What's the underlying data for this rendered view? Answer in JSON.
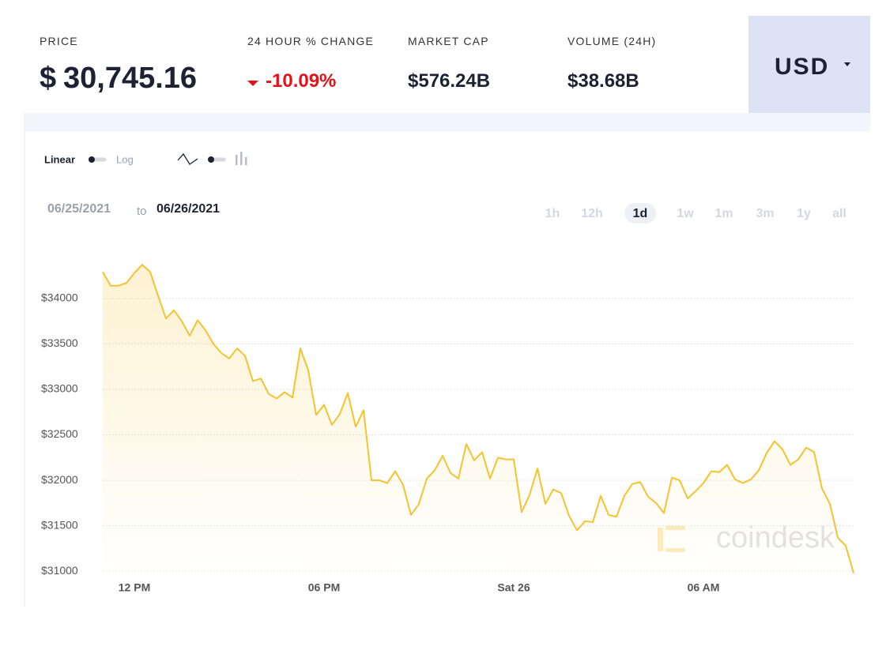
{
  "header": {
    "price_label": "PRICE",
    "currency_symbol": "$",
    "price": "30,745.16",
    "change_label": "24 HOUR % CHANGE",
    "change": "-10.09%",
    "market_cap_label": "MARKET CAP",
    "market_cap": "$576.24B",
    "volume_label": "VOLUME (24H)",
    "volume": "$38.68B",
    "currency": "USD"
  },
  "controls": {
    "linear": "Linear",
    "log": "Log",
    "from": "06/25/2021",
    "to_word": "to",
    "to": "06/26/2021",
    "ranges": [
      "1h",
      "12h",
      "1d",
      "1w",
      "1m",
      "3m",
      "1y",
      "all"
    ],
    "selected_range": "1d"
  },
  "chart_data": {
    "type": "area",
    "color": "#f5c330",
    "watermark": "coindesk",
    "grid": true,
    "categories": [
      null,
      null,
      null,
      null,
      "12 PM",
      null,
      null,
      null,
      null,
      null,
      null,
      null,
      null,
      null,
      null,
      null,
      null,
      null,
      null,
      null,
      null,
      null,
      null,
      null,
      null,
      null,
      null,
      null,
      "06 PM",
      null,
      null,
      null,
      null,
      null,
      null,
      null,
      null,
      null,
      null,
      null,
      null,
      null,
      null,
      null,
      null,
      null,
      null,
      null,
      null,
      null,
      null,
      null,
      "Sat 26",
      null,
      null,
      null,
      null,
      null,
      null,
      null,
      null,
      null,
      null,
      null,
      null,
      null,
      null,
      null,
      null,
      null,
      null,
      null,
      null,
      null,
      null,
      null,
      "06 AM",
      null,
      null,
      null,
      null,
      null,
      null,
      null,
      null,
      null,
      null,
      null,
      null,
      null,
      null,
      null,
      null,
      null,
      null,
      null
    ],
    "values": [
      34290,
      34140,
      34140,
      34170,
      34280,
      34370,
      34290,
      34030,
      33780,
      33870,
      33750,
      33590,
      33760,
      33650,
      33500,
      33400,
      33340,
      33450,
      33370,
      33090,
      33120,
      32950,
      32900,
      32970,
      32910,
      33450,
      33210,
      32720,
      32830,
      32610,
      32730,
      32960,
      32590,
      32770,
      32000,
      32000,
      31970,
      32100,
      31950,
      31620,
      31740,
      32020,
      32110,
      32270,
      32080,
      32020,
      32400,
      32220,
      32310,
      32020,
      32250,
      32230,
      32230,
      31650,
      31840,
      32130,
      31740,
      31900,
      31860,
      31610,
      31450,
      31550,
      31540,
      31830,
      31620,
      31600,
      31830,
      31960,
      31980,
      31820,
      31750,
      31640,
      32030,
      32000,
      31800,
      31880,
      31970,
      32100,
      32090,
      32170,
      32010,
      31970,
      32010,
      32110,
      32300,
      32430,
      32340,
      32170,
      32230,
      32360,
      32310,
      31910,
      31740,
      31370,
      31280,
      30980
    ],
    "ylim": [
      30950,
      34450
    ],
    "yticks": [
      {
        "value": 31000,
        "label": "$31000"
      },
      {
        "value": 31500,
        "label": "$31500"
      },
      {
        "value": 32000,
        "label": "$32000"
      },
      {
        "value": 32500,
        "label": "$32500"
      },
      {
        "value": 33000,
        "label": "$33000"
      },
      {
        "value": 33500,
        "label": "$33500"
      },
      {
        "value": 34000,
        "label": "$34000"
      }
    ]
  }
}
